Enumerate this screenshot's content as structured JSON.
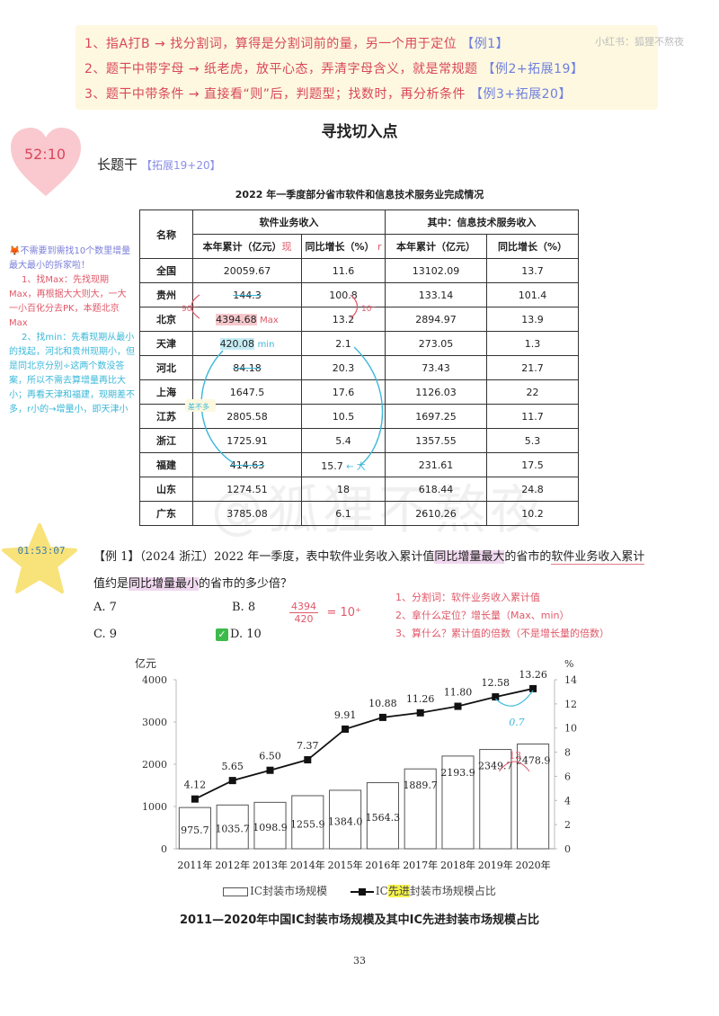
{
  "tips": {
    "lines": [
      {
        "text": "1、指A打B → 找分割词，算得是分割词前的量，另一个用于定位",
        "ref": "【例1】"
      },
      {
        "text": "2、题干中带字母 → 纸老虎，放平心态，弄清字母含义，就是常规题",
        "ref": "【例2+拓展19】"
      },
      {
        "text": "3、题干中带条件 → 直接看“则”后，判题型；找数时，再分析条件",
        "ref": "【例3+拓展20】"
      }
    ],
    "watermark": "小红书：狐狸不熬夜"
  },
  "section": {
    "title": "寻找切入点",
    "heart_time": "52:10",
    "subheading": "长题干",
    "subheading_ref": "【拓展19+20】"
  },
  "table": {
    "title": "2022 年一季度部分省市软件和信息技术服务业完成情况",
    "header_name": "名称",
    "group1": "软件业务收入",
    "group2": "其中：信息技术服务收入",
    "sub_headers": [
      "本年累计（亿元）",
      "同比增长（%）",
      "本年累计（亿元）",
      "同比增长（%）"
    ],
    "annot_cum": "现",
    "annot_rate": "r",
    "rows": [
      {
        "name": "全国",
        "c1": "20059.67",
        "c2": "11.6",
        "c3": "13102.09",
        "c4": "13.7"
      },
      {
        "name": "贵州",
        "c1": "144.3",
        "c2": "100.8",
        "c3": "133.14",
        "c4": "101.4"
      },
      {
        "name": "北京",
        "c1": "4394.68",
        "c2": "13.2",
        "c3": "2894.97",
        "c4": "13.9"
      },
      {
        "name": "天津",
        "c1": "420.08",
        "c2": "2.1",
        "c3": "273.05",
        "c4": "1.3"
      },
      {
        "name": "河北",
        "c1": "84.18",
        "c2": "20.3",
        "c3": "73.43",
        "c4": "21.7"
      },
      {
        "name": "上海",
        "c1": "1647.5",
        "c2": "17.6",
        "c3": "1126.03",
        "c4": "22"
      },
      {
        "name": "江苏",
        "c1": "2805.58",
        "c2": "10.5",
        "c3": "1697.25",
        "c4": "11.7"
      },
      {
        "name": "浙江",
        "c1": "1725.91",
        "c2": "5.4",
        "c3": "1357.55",
        "c4": "5.3"
      },
      {
        "name": "福建",
        "c1": "414.63",
        "c2": "15.7",
        "c3": "231.61",
        "c4": "17.5"
      },
      {
        "name": "山东",
        "c1": "1274.51",
        "c2": "18",
        "c3": "618.44",
        "c4": "24.8"
      },
      {
        "name": "广东",
        "c1": "3785.08",
        "c2": "6.1",
        "c3": "2610.26",
        "c4": "10.2"
      }
    ],
    "annotations": {
      "max": "Max",
      "min": "min",
      "guizhou_left": "90⁺",
      "guizhou_right": "10⁻",
      "similar": "差不多",
      "big": "大"
    },
    "watermark": "@狐狸不熬夜"
  },
  "side_note": {
    "intro": "🦊不需要到需找10个数里增量最大最小的拆家啦！",
    "step1": "1、找Max：先找现期Max，再根据大大则大，一大一小百化分去PK，本题北京Max",
    "step2": "2、找min：先看现期从最小的找起，河北和贵州现期小，但是同北京分别÷这两个数没答案，所以不需去算增量再比大小；再看天津和福建，现期差不多，r小的→增量小，即天津小"
  },
  "question": {
    "star_time": "01:53:07",
    "prefix": "【例 1】（2024 浙江）2022 年一季度，表中软件业务收入累计值",
    "hl1": "同比增量最大",
    "mid1": "的省市的",
    "ul1": "软件业务收入累计",
    "line2_a": "值约是",
    "hl2": "同比增量最小",
    "line2_b": "的省市的多少倍？",
    "options": {
      "A": "A. 7",
      "B": "B. 8",
      "C": "C. 9",
      "D": "D. 10"
    },
    "correct_mark": "✓",
    "calc_num": "4394",
    "calc_den": "420",
    "calc_result": "= 10⁺",
    "analysis": [
      "1、分割词：软件业务收入累计值",
      "2、拿什么定位？增长量（Max、min）",
      "3、算什么？累计值的倍数（不是增长量的倍数）"
    ]
  },
  "chart_data": {
    "type": "bar",
    "title": "2011—2020年中国IC封装市场规模及其中IC先进封装市场规模占比",
    "categories": [
      "2011年",
      "2012年",
      "2013年",
      "2014年",
      "2015年",
      "2016年",
      "2017年",
      "2018年",
      "2019年",
      "2020年"
    ],
    "series": [
      {
        "name": "IC封装市场规模",
        "type": "bar",
        "axis": "left",
        "values": [
          975.7,
          1035.7,
          1098.9,
          1255.9,
          1384.0,
          1564.3,
          1889.7,
          2193.9,
          2349.7,
          2478.9
        ]
      },
      {
        "name": "IC先进封装市场规模占比",
        "type": "line",
        "axis": "right",
        "values": [
          4.12,
          5.65,
          6.5,
          7.37,
          9.91,
          10.88,
          11.26,
          11.8,
          12.58,
          13.26
        ]
      }
    ],
    "ylabel": "亿元",
    "ylabel_right": "%",
    "ylim": [
      0,
      4000
    ],
    "ylim_right": [
      0,
      14
    ],
    "yticks": [
      0,
      1000,
      2000,
      3000,
      4000
    ],
    "yticks_right": [
      0,
      2,
      4,
      6,
      8,
      10,
      12,
      14
    ],
    "legend_position": "bottom",
    "annotations": [
      "0.7",
      "13"
    ]
  },
  "legend": {
    "bar_label": "IC封装市场规模",
    "line_prefix": "IC",
    "line_highlight": "先进",
    "line_suffix": "封装市场规模占比"
  },
  "page_number": "33"
}
